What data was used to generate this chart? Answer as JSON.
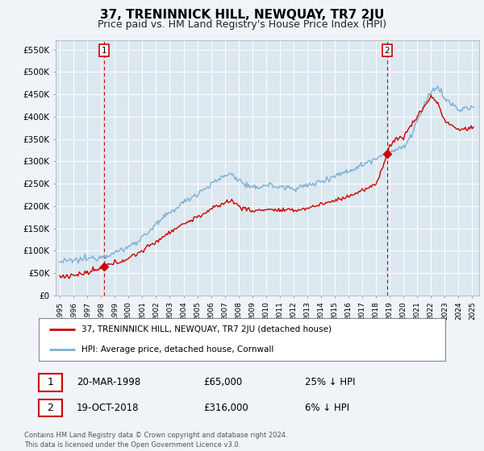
{
  "title": "37, TRENINNICK HILL, NEWQUAY, TR7 2JU",
  "subtitle": "Price paid vs. HM Land Registry's House Price Index (HPI)",
  "title_fontsize": 11,
  "subtitle_fontsize": 9,
  "ylabel_ticks": [
    "£0",
    "£50K",
    "£100K",
    "£150K",
    "£200K",
    "£250K",
    "£300K",
    "£350K",
    "£400K",
    "£450K",
    "£500K",
    "£550K"
  ],
  "ytick_vals": [
    0,
    50000,
    100000,
    150000,
    200000,
    250000,
    300000,
    350000,
    400000,
    450000,
    500000,
    550000
  ],
  "ylim": [
    0,
    570000
  ],
  "xlim_start": 1994.7,
  "xlim_end": 2025.5,
  "bg_color": "#f0f4f8",
  "plot_bg_color": "#dce8f0",
  "grid_color": "#ffffff",
  "transaction1_date": 1998.22,
  "transaction1_price": 65000,
  "transaction1_label": "1",
  "transaction2_date": 2018.8,
  "transaction2_price": 316000,
  "transaction2_label": "2",
  "vline_color": "#cc0000",
  "legend_line1": "37, TRENINNICK HILL, NEWQUAY, TR7 2JU (detached house)",
  "legend_line2": "HPI: Average price, detached house, Cornwall",
  "annot1_date": "20-MAR-1998",
  "annot1_price": "£65,000",
  "annot1_hpi": "25% ↓ HPI",
  "annot2_date": "19-OCT-2018",
  "annot2_price": "£316,000",
  "annot2_hpi": "6% ↓ HPI",
  "footer": "Contains HM Land Registry data © Crown copyright and database right 2024.\nThis data is licensed under the Open Government Licence v3.0.",
  "red_line_color": "#cc0000",
  "blue_line_color": "#7ab0d4"
}
